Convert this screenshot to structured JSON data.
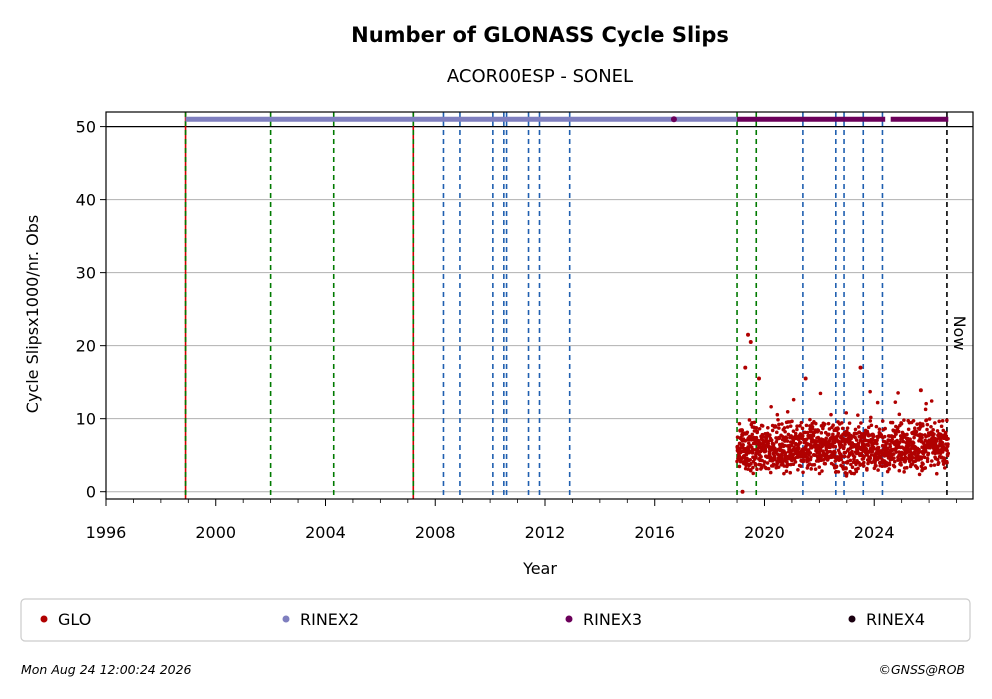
{
  "chart_data": {
    "type": "scatter",
    "title": "Number of GLONASS Cycle Slips",
    "subtitle": "ACOR00ESP - SONEL",
    "xlabel": "Year",
    "ylabel": "Cycle Slipsx1000/nr. Obs",
    "xlim": [
      1996.0,
      2027.6
    ],
    "ylim": [
      -1,
      52
    ],
    "x_ticks": [
      1996,
      2000,
      2004,
      2008,
      2012,
      2016,
      2020,
      2024
    ],
    "x_tick_labels": [
      "1996",
      "2000",
      "2004",
      "2008",
      "2012",
      "2016",
      "2020",
      "2024"
    ],
    "y_ticks": [
      0,
      10,
      20,
      30,
      40,
      50
    ],
    "y_tick_labels": [
      "0",
      "10",
      "20",
      "30",
      "40",
      "50"
    ],
    "grid": "horizontal",
    "legend_position": "bottom",
    "series": [
      {
        "name": "GLO",
        "color": "#b00000",
        "x_range": [
          2019.0,
          2026.7
        ],
        "typical_range": [
          3,
          10
        ],
        "peak_values": [
          21.5,
          17.0,
          15.5,
          14.8,
          13.9
        ]
      },
      {
        "name": "RINEX2",
        "color": "#7f7fbf",
        "x_range": [
          1998.9,
          2019.0
        ],
        "y": 51
      },
      {
        "name": "RINEX3",
        "color": "#6b005a",
        "x_range": [
          2019.0,
          2026.7
        ],
        "y": 51
      },
      {
        "name": "RINEX4",
        "color": "#1a0010",
        "x_range": [],
        "y": 51
      }
    ],
    "vertical_markers": [
      {
        "x": 1998.9,
        "kind": "red-green"
      },
      {
        "x": 2007.2,
        "kind": "red-green"
      },
      {
        "x": 2002.0,
        "kind": "green"
      },
      {
        "x": 2004.3,
        "kind": "green"
      },
      {
        "x": 2019.0,
        "kind": "green"
      },
      {
        "x": 2019.7,
        "kind": "green"
      },
      {
        "x": 2008.3,
        "kind": "blue"
      },
      {
        "x": 2008.9,
        "kind": "blue"
      },
      {
        "x": 2010.1,
        "kind": "blue"
      },
      {
        "x": 2010.5,
        "kind": "blue"
      },
      {
        "x": 2010.6,
        "kind": "blue"
      },
      {
        "x": 2011.4,
        "kind": "blue"
      },
      {
        "x": 2011.8,
        "kind": "blue"
      },
      {
        "x": 2012.9,
        "kind": "blue"
      },
      {
        "x": 2021.4,
        "kind": "blue"
      },
      {
        "x": 2022.6,
        "kind": "blue"
      },
      {
        "x": 2022.9,
        "kind": "blue"
      },
      {
        "x": 2023.6,
        "kind": "blue"
      },
      {
        "x": 2024.3,
        "kind": "blue"
      }
    ],
    "now_marker": {
      "x": 2026.65,
      "label": "Now"
    }
  },
  "footer": {
    "timestamp": "Mon Aug 24 12:00:24 2026",
    "credit": "©GNSS@ROB"
  }
}
